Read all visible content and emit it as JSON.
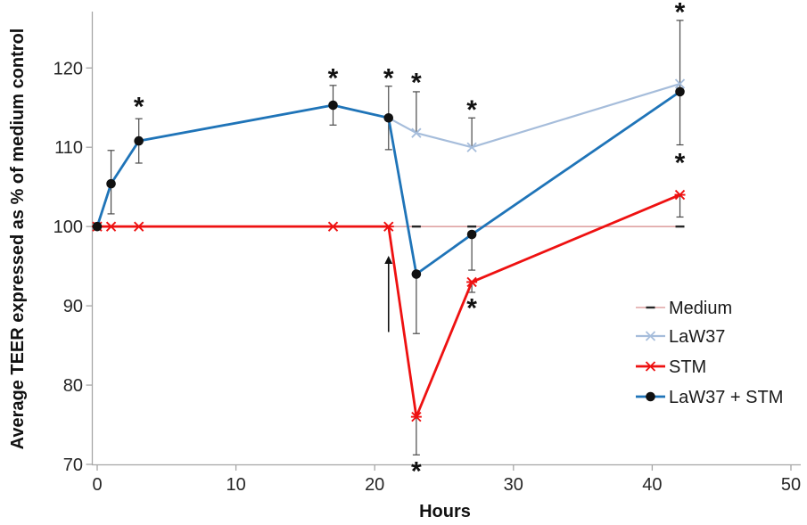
{
  "chart_data": {
    "type": "line",
    "title": "",
    "xlabel": "Hours",
    "ylabel": "Average TEER expressed as % of medium control",
    "xlim": [
      0,
      50
    ],
    "ylim": [
      70,
      127
    ],
    "x_ticks": [
      0,
      10,
      20,
      30,
      40,
      50
    ],
    "y_ticks": [
      70,
      80,
      90,
      100,
      110,
      120
    ],
    "grid": false,
    "legend_position": "right",
    "x": [
      0,
      1,
      3,
      17,
      21,
      23,
      27,
      42
    ],
    "series": [
      {
        "name": "Medium",
        "color": "#dfa3a3",
        "marker": "dash",
        "marker_color": "#262626",
        "line_width": 1.6,
        "marker_from_index": 5,
        "values": [
          100,
          100,
          100,
          100,
          100,
          100,
          100,
          100
        ]
      },
      {
        "name": "LaW37",
        "color": "#a6bddb",
        "marker": "x",
        "marker_color": "#a6bddb",
        "line_width": 2.2,
        "marker_from_index": 5,
        "values": [
          null,
          null,
          null,
          null,
          113.7,
          111.8,
          110,
          118
        ],
        "err_up": [
          null,
          null,
          null,
          null,
          null,
          5.2,
          3.7,
          null
        ],
        "err_down": [
          null,
          null,
          null,
          null,
          null,
          0,
          0,
          null
        ]
      },
      {
        "name": "STM",
        "color": "#ee1111",
        "marker": "asterisk",
        "marker_color": "#ee1111",
        "line_width": 2.8,
        "values": [
          100,
          100,
          100,
          100,
          100,
          76,
          93,
          104
        ],
        "err_up": [
          0,
          0,
          0,
          0,
          0,
          0,
          0,
          0
        ],
        "err_down": [
          0,
          0,
          0,
          0,
          0,
          4.8,
          1.3,
          2.8
        ]
      },
      {
        "name": "LaW37 + STM",
        "color": "#1f74b8",
        "marker": "circle",
        "marker_color": "#111111",
        "line_width": 2.8,
        "values": [
          100,
          105.4,
          110.8,
          115.3,
          113.7,
          94,
          99,
          117
        ],
        "err_up": [
          0,
          4.2,
          2.8,
          2.5,
          4,
          0,
          0,
          9
        ],
        "err_down": [
          0,
          3.8,
          2.8,
          2.5,
          4,
          7.5,
          4.5,
          6.7
        ]
      }
    ],
    "annotations": {
      "significance_marker": "*",
      "asterisks": [
        {
          "x": 3,
          "y": 115.6
        },
        {
          "x": 17,
          "y": 119.2
        },
        {
          "x": 21,
          "y": 119.2
        },
        {
          "x": 23,
          "y": 118.6
        },
        {
          "x": 27,
          "y": 115.2
        },
        {
          "x": 42,
          "y": 127.5
        },
        {
          "x": 42,
          "y": 108.5
        },
        {
          "x": 27,
          "y": 90.2
        },
        {
          "x": 23,
          "y": 69.6
        }
      ],
      "arrow": {
        "x": 21,
        "y_from": 86.7,
        "y_to": 96.3
      }
    }
  },
  "colors": {
    "axis": "#a6a6a6",
    "error_bar": "#4a4a4a",
    "annotation": "#111111"
  }
}
